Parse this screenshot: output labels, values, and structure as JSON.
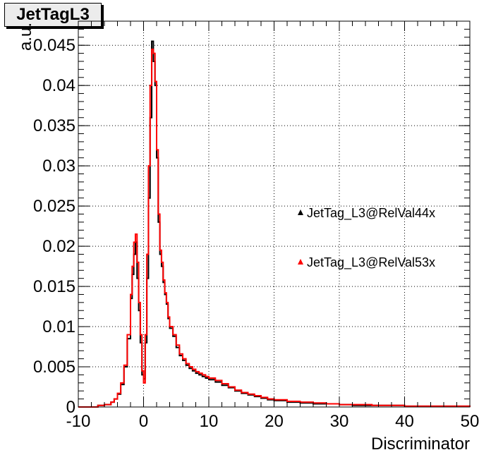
{
  "chart_data": {
    "type": "line",
    "title": "JetTagL3",
    "xlabel": "Discriminator",
    "ylabel": "a.u.",
    "xlim": [
      -10,
      50
    ],
    "ylim": [
      0,
      0.048
    ],
    "grid": true,
    "legend_position": "right",
    "x_ticks": [
      "-10",
      "0",
      "10",
      "20",
      "30",
      "40",
      "50"
    ],
    "y_ticks": [
      "0",
      "0.005",
      "0.01",
      "0.015",
      "0.02",
      "0.025",
      "0.03",
      "0.035",
      "0.04",
      "0.045"
    ],
    "series": [
      {
        "name": "JetTag_L3@RelVal44x",
        "color": "#000000",
        "x": [
          -10,
          -8,
          -7,
          -6,
          -5,
          -4.5,
          -4,
          -3.5,
          -3,
          -2.5,
          -2,
          -1.75,
          -1.5,
          -1.25,
          -1,
          -0.75,
          -0.5,
          -0.25,
          0,
          0.25,
          0.5,
          0.75,
          1,
          1.25,
          1.5,
          1.75,
          2,
          2.25,
          2.5,
          2.75,
          3,
          3.25,
          3.5,
          3.75,
          4,
          4.5,
          5,
          5.5,
          6,
          6.5,
          7,
          7.5,
          8,
          8.5,
          9,
          9.5,
          10,
          11,
          12,
          13,
          14,
          15,
          16,
          17,
          18,
          19,
          20,
          22,
          24,
          26,
          28,
          30,
          32,
          35,
          40,
          45,
          50
        ],
        "values": [
          0,
          0,
          0.0002,
          0.0003,
          0.0006,
          0.001,
          0.0016,
          0.0028,
          0.005,
          0.0085,
          0.0135,
          0.0165,
          0.019,
          0.0205,
          0.016,
          0.012,
          0.008,
          0.004,
          0.0035,
          0.008,
          0.016,
          0.026,
          0.036,
          0.0455,
          0.043,
          0.04,
          0.031,
          0.023,
          0.019,
          0.0175,
          0.0155,
          0.014,
          0.0128,
          0.011,
          0.0098,
          0.0088,
          0.0074,
          0.0064,
          0.0058,
          0.0052,
          0.0048,
          0.0045,
          0.0042,
          0.004,
          0.0038,
          0.0036,
          0.0034,
          0.0031,
          0.0027,
          0.0024,
          0.002,
          0.0017,
          0.0015,
          0.0013,
          0.0011,
          0.0009,
          0.0008,
          0.0006,
          0.0005,
          0.0004,
          0.0004,
          0.0003,
          0.0002,
          0.0002,
          0.0001,
          0.0001,
          0
        ]
      },
      {
        "name": "JetTag_L3@RelVal53x",
        "color": "#ff0000",
        "x": [
          -10,
          -8,
          -7,
          -6,
          -5,
          -4.5,
          -4,
          -3.5,
          -3,
          -2.5,
          -2,
          -1.75,
          -1.5,
          -1.25,
          -1,
          -0.75,
          -0.5,
          -0.25,
          0,
          0.25,
          0.5,
          0.75,
          1,
          1.25,
          1.5,
          1.75,
          2,
          2.25,
          2.5,
          2.75,
          3,
          3.25,
          3.5,
          3.75,
          4,
          4.5,
          5,
          5.5,
          6,
          6.5,
          7,
          7.5,
          8,
          8.5,
          9,
          9.5,
          10,
          11,
          12,
          13,
          14,
          15,
          16,
          17,
          18,
          19,
          20,
          22,
          24,
          26,
          28,
          30,
          32,
          35,
          40,
          45,
          50
        ],
        "values": [
          0,
          0,
          0.0002,
          0.0003,
          0.0006,
          0.001,
          0.0017,
          0.003,
          0.0052,
          0.009,
          0.014,
          0.0175,
          0.0205,
          0.0215,
          0.018,
          0.013,
          0.009,
          0.0045,
          0.003,
          0.009,
          0.019,
          0.03,
          0.04,
          0.0445,
          0.044,
          0.0405,
          0.032,
          0.024,
          0.0195,
          0.018,
          0.0158,
          0.0142,
          0.013,
          0.0112,
          0.01,
          0.009,
          0.0077,
          0.0066,
          0.006,
          0.0054,
          0.005,
          0.0047,
          0.0044,
          0.0042,
          0.004,
          0.0038,
          0.0036,
          0.0033,
          0.0029,
          0.0025,
          0.0021,
          0.0018,
          0.0016,
          0.0014,
          0.0012,
          0.001,
          0.0009,
          0.0007,
          0.0006,
          0.0005,
          0.0004,
          0.0003,
          0.0003,
          0.0002,
          0.0001,
          0.0001,
          0
        ]
      }
    ]
  }
}
